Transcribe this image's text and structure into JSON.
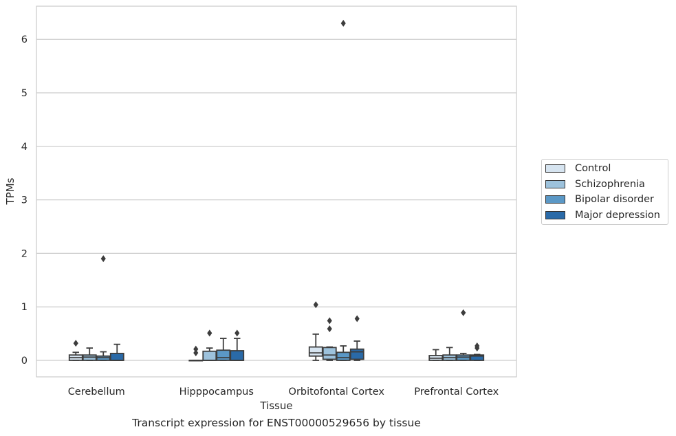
{
  "chart_data": {
    "type": "box",
    "title": "",
    "caption": "Transcript expression for ENST00000529656 by tissue",
    "xlabel": "Tissue",
    "ylabel": "TPMs",
    "ylim": [
      -0.3,
      6.6
    ],
    "yticks": [
      "0",
      "1",
      "2",
      "3",
      "4",
      "5",
      "6"
    ],
    "grid": "horizontal",
    "legend_position": "right",
    "categories": [
      "Cerebellum",
      "Hipppocampus",
      "Orbitofontal Cortex",
      "Prefrontal Cortex"
    ],
    "series": [
      {
        "name": "Control",
        "color": "#d6e4f0",
        "boxes": [
          {
            "whislo": 0.0,
            "q1": 0.0,
            "med": 0.05,
            "q3": 0.1,
            "whishi": 0.15,
            "fliers": [
              0.32
            ]
          },
          {
            "whislo": 0.0,
            "q1": 0.0,
            "med": 0.0,
            "q3": 0.0,
            "whishi": 0.0,
            "fliers": [
              0.14,
              0.21
            ]
          },
          {
            "whislo": 0.0,
            "q1": 0.08,
            "med": 0.14,
            "q3": 0.25,
            "whishi": 0.49,
            "fliers": [
              1.04
            ]
          },
          {
            "whislo": 0.0,
            "q1": 0.0,
            "med": 0.04,
            "q3": 0.09,
            "whishi": 0.2,
            "fliers": []
          }
        ]
      },
      {
        "name": "Schizophrenia",
        "color": "#9dc2dc",
        "boxes": [
          {
            "whislo": 0.0,
            "q1": 0.0,
            "med": 0.06,
            "q3": 0.1,
            "whishi": 0.23,
            "fliers": []
          },
          {
            "whislo": 0.0,
            "q1": 0.0,
            "med": 0.0,
            "q3": 0.17,
            "whishi": 0.23,
            "fliers": [
              0.51
            ]
          },
          {
            "whislo": 0.0,
            "q1": 0.02,
            "med": 0.1,
            "q3": 0.24,
            "whishi": 0.25,
            "fliers": [
              0.59,
              0.74
            ]
          },
          {
            "whislo": 0.0,
            "q1": 0.0,
            "med": 0.05,
            "q3": 0.1,
            "whishi": 0.24,
            "fliers": []
          }
        ]
      },
      {
        "name": "Bipolar disorder",
        "color": "#5b98c6",
        "boxes": [
          {
            "whislo": 0.0,
            "q1": 0.0,
            "med": 0.05,
            "q3": 0.08,
            "whishi": 0.16,
            "fliers": [
              1.9
            ]
          },
          {
            "whislo": 0.0,
            "q1": 0.0,
            "med": 0.05,
            "q3": 0.19,
            "whishi": 0.41,
            "fliers": []
          },
          {
            "whislo": 0.0,
            "q1": 0.0,
            "med": 0.05,
            "q3": 0.15,
            "whishi": 0.27,
            "fliers": [
              6.3
            ]
          },
          {
            "whislo": 0.0,
            "q1": 0.0,
            "med": 0.06,
            "q3": 0.1,
            "whishi": 0.13,
            "fliers": [
              0.89
            ]
          }
        ]
      },
      {
        "name": "Major depression",
        "color": "#2a6aa8",
        "boxes": [
          {
            "whislo": 0.0,
            "q1": 0.0,
            "med": 0.0,
            "q3": 0.13,
            "whishi": 0.3,
            "fliers": []
          },
          {
            "whislo": 0.0,
            "q1": 0.0,
            "med": 0.0,
            "q3": 0.18,
            "whishi": 0.41,
            "fliers": [
              0.51
            ]
          },
          {
            "whislo": 0.0,
            "q1": 0.02,
            "med": 0.16,
            "q3": 0.21,
            "whishi": 0.36,
            "fliers": [
              0.78
            ]
          },
          {
            "whislo": 0.0,
            "q1": 0.0,
            "med": 0.08,
            "q3": 0.1,
            "whishi": 0.11,
            "fliers": [
              0.23,
              0.27
            ]
          }
        ]
      }
    ]
  }
}
